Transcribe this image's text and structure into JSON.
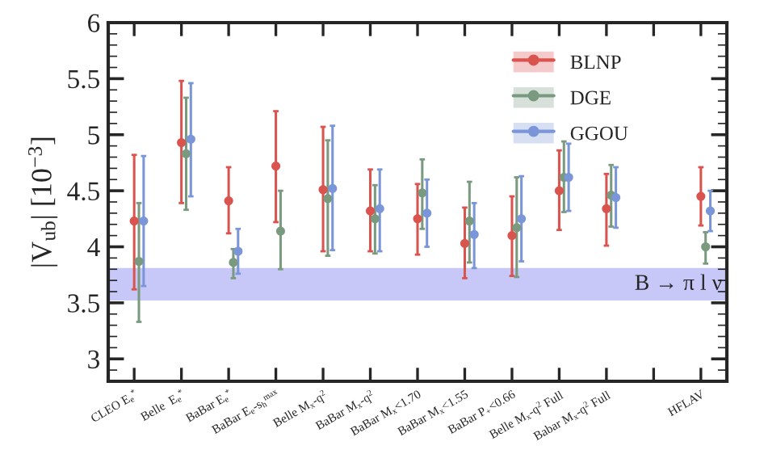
{
  "chart_data": {
    "type": "scatter",
    "ylabel": "|V$_{ub}$| [10$^{−3}$]",
    "categories": [
      "CLEO E$_{e}$$^{*}$",
      "Belle  E$_{e}$$^{*}$",
      "BaBar E$_{e}$$^{*}$",
      "BaBar E$_{e}$-s$_{h}$$^{max}$",
      "Belle M$_{x}$-q$^{2}$",
      "BaBar M$_{x}$-q$^{2}$",
      "BaBar M$_{x}$<1.70",
      "BaBar M$_{x}$<1.55",
      "BaBar P$_{+}$<0.66",
      "Belle M$_{x}$-q$^{2}$ Full",
      "Babar M$_{x}$-q$^{2}$ Full",
      null,
      "HFLAV"
    ],
    "series": [
      {
        "name": "BLNP",
        "color": "#d9534f",
        "values": [
          4.23,
          4.93,
          4.41,
          4.72,
          4.51,
          4.32,
          4.25,
          4.03,
          4.1,
          4.5,
          4.34,
          null,
          4.45
        ],
        "errors": [
          [
            3.62,
            4.82
          ],
          [
            4.39,
            5.48
          ],
          [
            4.12,
            4.71
          ],
          [
            4.22,
            5.21
          ],
          [
            3.96,
            5.07
          ],
          [
            3.96,
            4.69
          ],
          [
            3.93,
            4.56
          ],
          [
            3.72,
            4.35
          ],
          [
            3.74,
            4.45
          ],
          [
            4.15,
            4.86
          ],
          [
            4.01,
            4.65
          ],
          null,
          [
            4.19,
            4.71
          ]
        ]
      },
      {
        "name": "DGE",
        "color": "#7a9a80",
        "values": [
          3.87,
          4.83,
          3.86,
          4.14,
          4.43,
          4.25,
          4.48,
          4.23,
          4.17,
          4.62,
          4.46,
          null,
          4.0
        ],
        "errors": [
          [
            3.33,
            4.39
          ],
          [
            4.33,
            5.33
          ],
          [
            3.72,
            3.98
          ],
          [
            3.8,
            4.5
          ],
          [
            3.92,
            4.95
          ],
          [
            3.94,
            4.55
          ],
          [
            4.16,
            4.78
          ],
          [
            3.86,
            4.58
          ],
          [
            3.73,
            4.62
          ],
          [
            4.31,
            4.94
          ],
          [
            4.18,
            4.73
          ],
          null,
          [
            3.85,
            4.13
          ]
        ]
      },
      {
        "name": "GGOU",
        "color": "#7b96d8",
        "values": [
          4.23,
          4.96,
          3.96,
          null,
          4.52,
          4.34,
          4.3,
          4.11,
          4.25,
          4.62,
          4.44,
          null,
          4.32
        ],
        "errors": [
          [
            3.65,
            4.81
          ],
          [
            4.45,
            5.46
          ],
          [
            3.76,
            4.16
          ],
          null,
          [
            3.97,
            5.08
          ],
          [
            3.96,
            4.69
          ],
          [
            4.0,
            4.6
          ],
          [
            3.81,
            4.39
          ],
          [
            3.87,
            4.63
          ],
          [
            4.32,
            4.92
          ],
          [
            4.17,
            4.71
          ],
          null,
          [
            4.14,
            4.5
          ]
        ]
      }
    ],
    "ylim": [
      2.8,
      6
    ],
    "yticks": [
      3,
      3.5,
      4,
      4.5,
      5,
      5.5,
      6
    ],
    "marker": "circle",
    "legend": "top right",
    "bands": [
      {
        "axis": "y",
        "from": 3.52,
        "to": 3.81,
        "label": "B → π l ν",
        "color": "#c8c8f8"
      }
    ]
  }
}
